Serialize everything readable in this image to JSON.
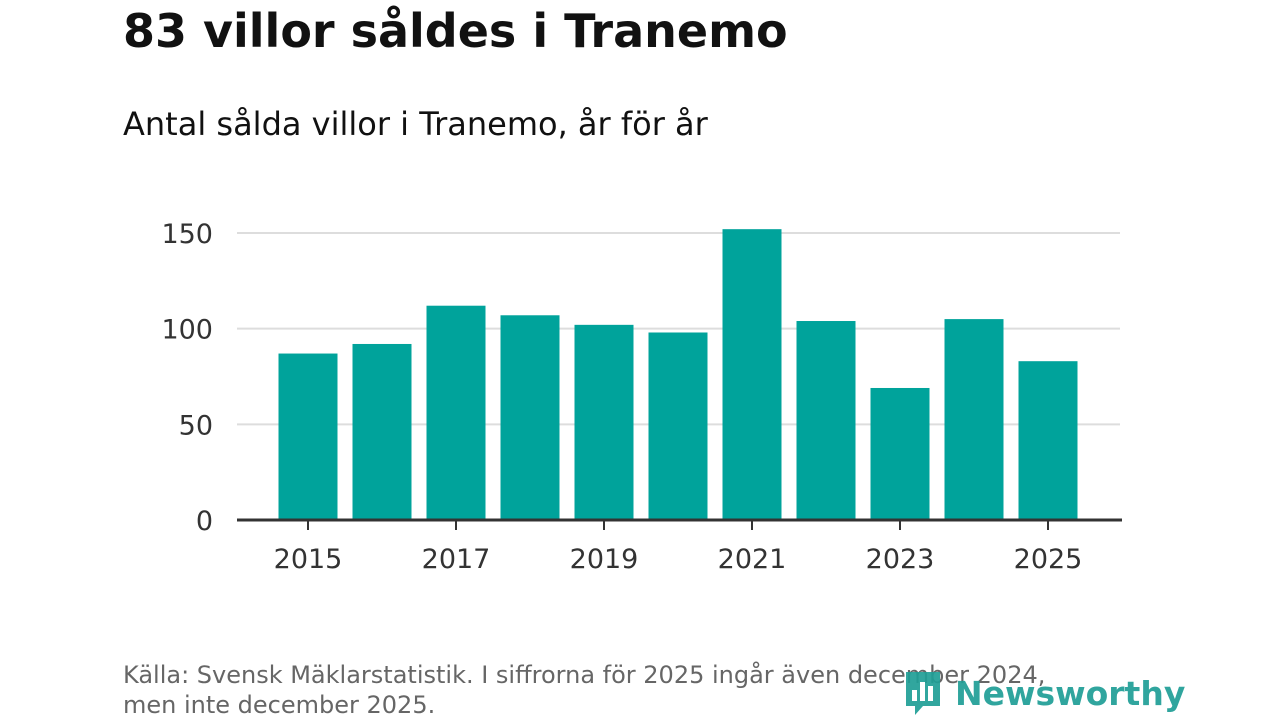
{
  "header": {
    "title": "83 villor såldes i Tranemo",
    "subtitle": "Antal sålda villor i Tranemo, år för år"
  },
  "footer": {
    "source_line1": "Källa: Svensk Mäklarstatistik. I siffrorna för 2025 ingår även december 2024,",
    "source_line2": "men inte december 2025."
  },
  "brand": {
    "name": "Newsworthy",
    "icon": "bar-chart-icon",
    "color": "#1f9e96"
  },
  "colors": {
    "bar": "#00a39b",
    "grid": "#dddddd",
    "axis": "#333333"
  },
  "chart_data": {
    "type": "bar",
    "title": "83 villor såldes i Tranemo",
    "subtitle": "Antal sålda villor i Tranemo, år för år",
    "xlabel": "",
    "ylabel": "",
    "categories": [
      "2015",
      "2016",
      "2017",
      "2018",
      "2019",
      "2020",
      "2021",
      "2022",
      "2023",
      "2024",
      "2025"
    ],
    "values": [
      87,
      92,
      112,
      107,
      102,
      98,
      152,
      104,
      69,
      105,
      83
    ],
    "x_tick_labels": [
      "2015",
      "2017",
      "2019",
      "2021",
      "2023",
      "2025"
    ],
    "y_ticks": [
      0,
      50,
      100,
      150
    ],
    "ylim": [
      0,
      160
    ],
    "grid": true,
    "legend": false
  }
}
